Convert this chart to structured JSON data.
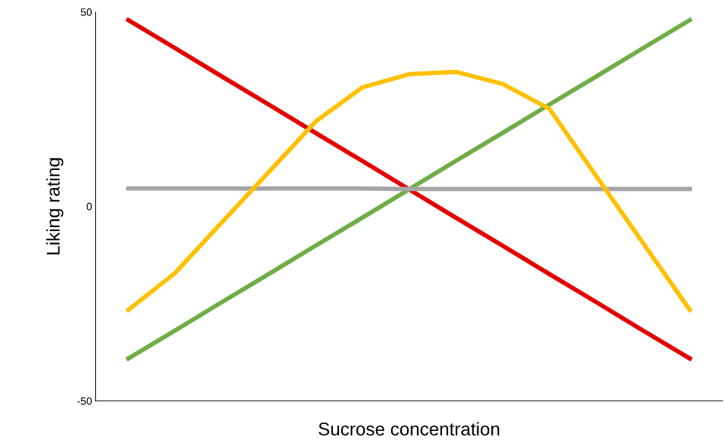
{
  "chart_data": {
    "type": "line",
    "xlabel": "Sucrose concentration",
    "ylabel": "Liking rating",
    "categories": [
      null,
      null,
      null,
      null,
      null,
      null,
      null,
      null,
      null,
      null,
      null,
      null,
      null
    ],
    "ylim": [
      -50,
      50
    ],
    "yticks": [
      -50,
      0,
      50
    ],
    "tick_labels": "y",
    "grid": false,
    "legend": false,
    "marker": "none",
    "line_style": "solid",
    "series": [
      {
        "color": "#e50000",
        "values": [
          47.9,
          40.7,
          33.4,
          26.2,
          18.9,
          11.7,
          4.4,
          -2.9,
          -10.1,
          -17.4,
          -24.6,
          -31.9,
          -39.1
        ]
      },
      {
        "color": "#70ad47",
        "values": [
          -39.1,
          -31.9,
          -24.6,
          -17.4,
          -10.1,
          -2.9,
          4.4,
          11.7,
          18.9,
          26.2,
          33.4,
          40.7,
          47.9
        ]
      },
      {
        "color": "#a5a5a5",
        "values": [
          4.6,
          4.6,
          4.6,
          4.6,
          4.6,
          4.6,
          4.5,
          4.5,
          4.5,
          4.5,
          4.5,
          4.5,
          4.5
        ]
      },
      {
        "color": "#ffc000",
        "values": [
          -26.6,
          -17.1,
          -4.1,
          8.8,
          21.8,
          30.6,
          34.0,
          34.6,
          31.5,
          25.1,
          7.8,
          -9.4,
          -26.6
        ]
      }
    ]
  }
}
